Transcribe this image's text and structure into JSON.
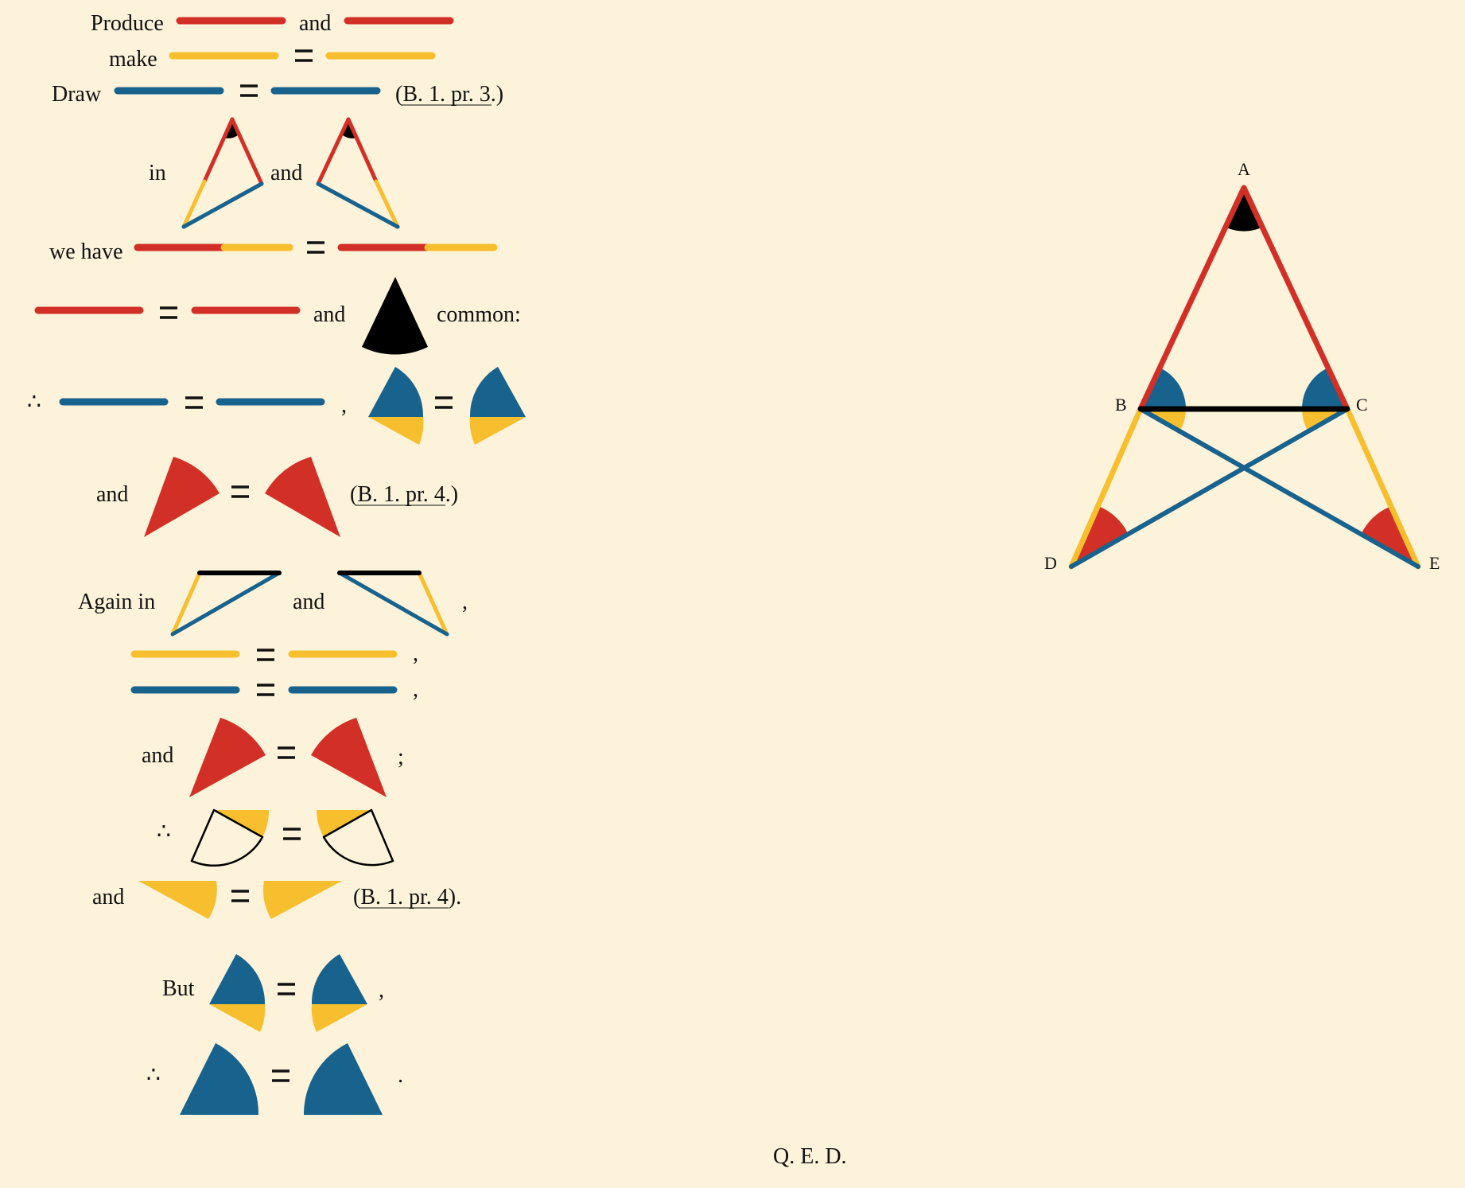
{
  "colors": {
    "red": "#d22f27",
    "yellow": "#f7bf2e",
    "blue": "#18628e",
    "black": "#000000",
    "background": "#fdf3da"
  },
  "proof": {
    "produce": "Produce",
    "and": "and",
    "make": "make",
    "draw": "Draw",
    "ref_pr3": "(B. 1. pr. 3.)",
    "in": "in",
    "we_have": "we have",
    "common": "common:",
    "therefore": "∴",
    "comma": ",",
    "ref_pr4": "(B. 1. pr. 4.)",
    "again_in": "Again in",
    "semicolon": ";",
    "ref_pr4_end": "(B. 1. pr. 4).",
    "but": "But",
    "period": ".",
    "qed": "Q. E. D."
  },
  "figure": {
    "points": [
      "A",
      "B",
      "C",
      "D",
      "E"
    ]
  }
}
